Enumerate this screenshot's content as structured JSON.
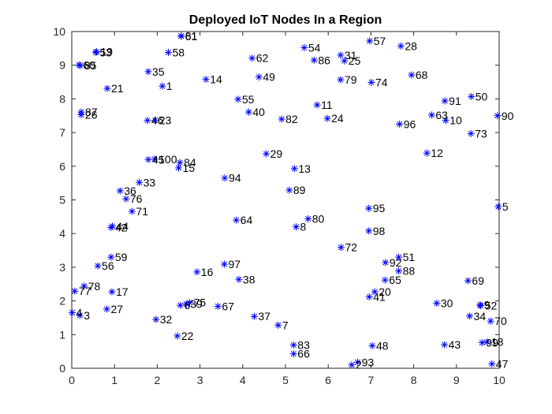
{
  "colors": {
    "marker": "#0000ff",
    "axis": "#262626",
    "label": "#000000",
    "background": "#ffffff"
  },
  "chart_data": {
    "type": "scatter",
    "title": "Deployed IoT Nodes In a Region",
    "xlabel": "",
    "ylabel": "",
    "xlim": [
      0,
      10
    ],
    "ylim": [
      0,
      10
    ],
    "xticks": [
      "0",
      "1",
      "2",
      "3",
      "4",
      "5",
      "6",
      "7",
      "8",
      "9",
      "10"
    ],
    "yticks": [
      "0",
      "1",
      "2",
      "3",
      "4",
      "5",
      "6",
      "7",
      "8",
      "9",
      "10"
    ],
    "grid": false,
    "legend": "none",
    "marker": "asterisk",
    "points": [
      {
        "label": "1",
        "x": 2.12,
        "y": 8.38
      },
      {
        "label": "2",
        "x": 6.55,
        "y": 0.1
      },
      {
        "label": "3",
        "x": 0.19,
        "y": 1.57
      },
      {
        "label": "4",
        "x": 0.01,
        "y": 1.65
      },
      {
        "label": "5",
        "x": 9.98,
        "y": 4.8
      },
      {
        "label": "6",
        "x": 2.54,
        "y": 1.87
      },
      {
        "label": "7",
        "x": 4.83,
        "y": 1.28
      },
      {
        "label": "8",
        "x": 5.25,
        "y": 4.2
      },
      {
        "label": "9",
        "x": 9.55,
        "y": 1.88
      },
      {
        "label": "10",
        "x": 8.75,
        "y": 7.36
      },
      {
        "label": "11",
        "x": 5.74,
        "y": 7.82
      },
      {
        "label": "12",
        "x": 8.31,
        "y": 6.39
      },
      {
        "label": "13",
        "x": 5.21,
        "y": 5.93
      },
      {
        "label": "14",
        "x": 3.14,
        "y": 8.58
      },
      {
        "label": "15",
        "x": 2.5,
        "y": 5.95
      },
      {
        "label": "16",
        "x": 2.93,
        "y": 2.86
      },
      {
        "label": "17",
        "x": 0.94,
        "y": 2.27
      },
      {
        "label": "18",
        "x": 9.72,
        "y": 0.78
      },
      {
        "label": "19",
        "x": 0.58,
        "y": 9.4
      },
      {
        "label": "20",
        "x": 7.09,
        "y": 2.27
      },
      {
        "label": "21",
        "x": 0.83,
        "y": 8.31
      },
      {
        "label": "22",
        "x": 2.47,
        "y": 0.96
      },
      {
        "label": "23",
        "x": 1.95,
        "y": 7.36
      },
      {
        "label": "24",
        "x": 5.98,
        "y": 7.42
      },
      {
        "label": "25",
        "x": 6.38,
        "y": 9.13
      },
      {
        "label": "26",
        "x": 0.22,
        "y": 7.53
      },
      {
        "label": "27",
        "x": 0.82,
        "y": 1.76
      },
      {
        "label": "28",
        "x": 7.7,
        "y": 9.57
      },
      {
        "label": "29",
        "x": 4.55,
        "y": 6.37
      },
      {
        "label": "30",
        "x": 8.54,
        "y": 1.93
      },
      {
        "label": "31",
        "x": 6.29,
        "y": 9.3
      },
      {
        "label": "32",
        "x": 1.97,
        "y": 1.45
      },
      {
        "label": "33",
        "x": 1.58,
        "y": 5.52
      },
      {
        "label": "34",
        "x": 9.31,
        "y": 1.55
      },
      {
        "label": "35",
        "x": 1.79,
        "y": 8.81
      },
      {
        "label": "36",
        "x": 1.13,
        "y": 5.27
      },
      {
        "label": "37",
        "x": 4.27,
        "y": 1.54
      },
      {
        "label": "38",
        "x": 3.91,
        "y": 2.64
      },
      {
        "label": "39",
        "x": 2.68,
        "y": 1.91
      },
      {
        "label": "40",
        "x": 4.14,
        "y": 7.61
      },
      {
        "label": "41",
        "x": 6.96,
        "y": 2.12
      },
      {
        "label": "42",
        "x": 0.92,
        "y": 4.18
      },
      {
        "label": "43",
        "x": 8.72,
        "y": 0.7
      },
      {
        "label": "44",
        "x": 0.95,
        "y": 4.22
      },
      {
        "label": "45",
        "x": 1.79,
        "y": 6.2
      },
      {
        "label": "46",
        "x": 1.77,
        "y": 7.36
      },
      {
        "label": "47",
        "x": 9.83,
        "y": 0.13
      },
      {
        "label": "48",
        "x": 7.03,
        "y": 0.67
      },
      {
        "label": "49",
        "x": 4.38,
        "y": 8.65
      },
      {
        "label": "50",
        "x": 9.35,
        "y": 8.07
      },
      {
        "label": "51",
        "x": 7.65,
        "y": 3.3
      },
      {
        "label": "52",
        "x": 9.57,
        "y": 1.86
      },
      {
        "label": "53",
        "x": 0.56,
        "y": 9.38
      },
      {
        "label": "54",
        "x": 5.44,
        "y": 9.52
      },
      {
        "label": "55",
        "x": 3.89,
        "y": 7.99
      },
      {
        "label": "56",
        "x": 0.61,
        "y": 3.04
      },
      {
        "label": "57",
        "x": 6.97,
        "y": 9.72
      },
      {
        "label": "58",
        "x": 2.26,
        "y": 9.38
      },
      {
        "label": "59",
        "x": 0.92,
        "y": 3.3
      },
      {
        "label": "60",
        "x": 0.17,
        "y": 9.01
      },
      {
        "label": "61",
        "x": 2.56,
        "y": 9.86
      },
      {
        "label": "62",
        "x": 4.22,
        "y": 9.21
      },
      {
        "label": "63",
        "x": 8.42,
        "y": 7.52
      },
      {
        "label": "64",
        "x": 3.85,
        "y": 4.4
      },
      {
        "label": "65",
        "x": 7.33,
        "y": 2.62
      },
      {
        "label": "66",
        "x": 5.19,
        "y": 0.43
      },
      {
        "label": "67",
        "x": 3.42,
        "y": 1.84
      },
      {
        "label": "68",
        "x": 7.95,
        "y": 8.71
      },
      {
        "label": "69",
        "x": 9.27,
        "y": 2.6
      },
      {
        "label": "70",
        "x": 9.8,
        "y": 1.4
      },
      {
        "label": "71",
        "x": 1.41,
        "y": 4.66
      },
      {
        "label": "72",
        "x": 6.3,
        "y": 3.59
      },
      {
        "label": "73",
        "x": 9.34,
        "y": 6.97
      },
      {
        "label": "74",
        "x": 7.01,
        "y": 8.49
      },
      {
        "label": "75",
        "x": 2.76,
        "y": 1.95
      },
      {
        "label": "76",
        "x": 1.27,
        "y": 5.03
      },
      {
        "label": "77",
        "x": 0.07,
        "y": 2.29
      },
      {
        "label": "78",
        "x": 0.29,
        "y": 2.44
      },
      {
        "label": "79",
        "x": 6.29,
        "y": 8.57
      },
      {
        "label": "80",
        "x": 5.53,
        "y": 4.44
      },
      {
        "label": "81",
        "x": 2.56,
        "y": 9.87
      },
      {
        "label": "82",
        "x": 4.91,
        "y": 7.4
      },
      {
        "label": "83",
        "x": 5.19,
        "y": 0.69
      },
      {
        "label": "84",
        "x": 2.53,
        "y": 6.11
      },
      {
        "label": "85",
        "x": 0.2,
        "y": 8.99
      },
      {
        "label": "86",
        "x": 5.67,
        "y": 9.15
      },
      {
        "label": "87",
        "x": 0.22,
        "y": 7.61
      },
      {
        "label": "88",
        "x": 7.65,
        "y": 2.89
      },
      {
        "label": "89",
        "x": 5.09,
        "y": 5.29
      },
      {
        "label": "90",
        "x": 9.96,
        "y": 7.5
      },
      {
        "label": "91",
        "x": 8.73,
        "y": 7.94
      },
      {
        "label": "92",
        "x": 7.34,
        "y": 3.14
      },
      {
        "label": "93",
        "x": 6.69,
        "y": 0.18
      },
      {
        "label": "94",
        "x": 3.58,
        "y": 5.65
      },
      {
        "label": "95",
        "x": 6.95,
        "y": 4.75
      },
      {
        "label": "96",
        "x": 7.67,
        "y": 7.25
      },
      {
        "label": "97",
        "x": 3.57,
        "y": 3.09
      },
      {
        "label": "98",
        "x": 6.95,
        "y": 4.08
      },
      {
        "label": "99",
        "x": 9.6,
        "y": 0.76
      },
      {
        "label": "100",
        "x": 1.94,
        "y": 6.21
      }
    ]
  }
}
